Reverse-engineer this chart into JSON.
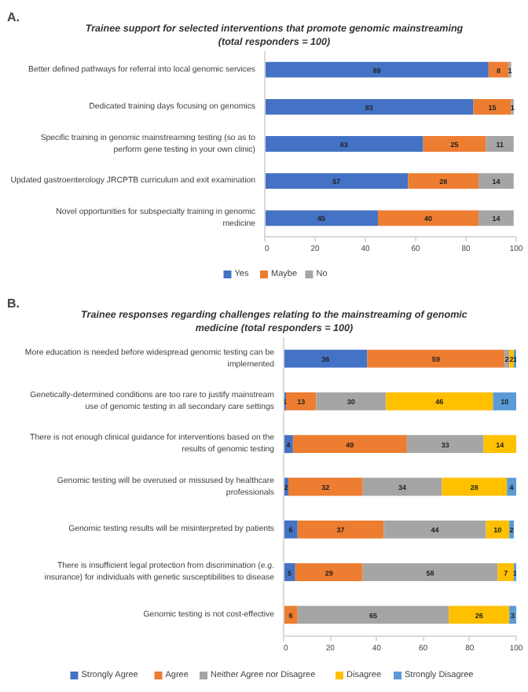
{
  "chart_data": [
    {
      "type": "bar",
      "orientation": "horizontal",
      "stacked": true,
      "data_labels": true,
      "legend": "bottom",
      "grid": false,
      "annotations": [
        "A."
      ],
      "title": "Trainee support for selected interventions that promote genomic mainstreaming (total responders = 100)",
      "categories": [
        "Better defined pathways for referral into local genomic services",
        "Dedicated training days focusing on genomics",
        "Specific training in genomic mainstreaming testing (so as to perform gene testing in your own clinic)",
        "Updated gastroenterology JRCPTB curriculum and exit examination",
        "Novel opportunities for subspecialty training in genomic medicine"
      ],
      "xlim": [
        0,
        100
      ],
      "xticks": [
        0,
        20,
        40,
        60,
        80,
        100
      ],
      "series": [
        {
          "name": "Yes",
          "color": "#4472c4",
          "values": [
            89,
            83,
            63,
            57,
            45
          ]
        },
        {
          "name": "Maybe",
          "color": "#ed7d31",
          "values": [
            8,
            15,
            25,
            28,
            40
          ]
        },
        {
          "name": "No",
          "color": "#a5a5a5",
          "values": [
            1,
            1,
            11,
            14,
            14
          ]
        }
      ]
    },
    {
      "type": "bar",
      "orientation": "horizontal",
      "stacked": true,
      "data_labels": true,
      "legend": "bottom",
      "grid": false,
      "annotations": [
        "B."
      ],
      "title": "Trainee responses regarding challenges relating to the mainstreaming of genomic medicine (total responders = 100)",
      "categories": [
        "More education is needed before widespread genomic testing can be implemented",
        "Genetically-determined conditions are too rare to justify mainstream use of genomic testing in all secondary care settings",
        "There is not enough clinical guidance for interventions based on the results of genomic testing",
        "Genomic testing will be overused or missused by healthcare professionals",
        "Genomic testing results will be misinterpreted by patients",
        "There is insufficient legal protection from discrimination (e.g. insurance) for individuals with genetic susceptibilities to disease",
        "Genomic testing is not cost-effective"
      ],
      "xlim": [
        0,
        100
      ],
      "xticks": [
        0,
        20,
        40,
        60,
        80,
        100
      ],
      "series": [
        {
          "name": "Strongly Agree",
          "color": "#4472c4",
          "values": [
            36,
            1,
            4,
            2,
            6,
            5,
            null
          ]
        },
        {
          "name": "Agree",
          "color": "#ed7d31",
          "values": [
            59,
            13,
            49,
            32,
            37,
            29,
            6
          ]
        },
        {
          "name": "Neither Agree nor Disagree",
          "color": "#a5a5a5",
          "values": [
            2,
            30,
            33,
            34,
            44,
            58,
            65
          ]
        },
        {
          "name": "Disagree",
          "color": "#ffc000",
          "values": [
            2,
            46,
            14,
            28,
            10,
            7,
            26
          ]
        },
        {
          "name": "Strongly Disagree",
          "color": "#5b9bd5",
          "values": [
            1,
            10,
            null,
            4,
            2,
            1,
            3
          ]
        }
      ]
    }
  ]
}
